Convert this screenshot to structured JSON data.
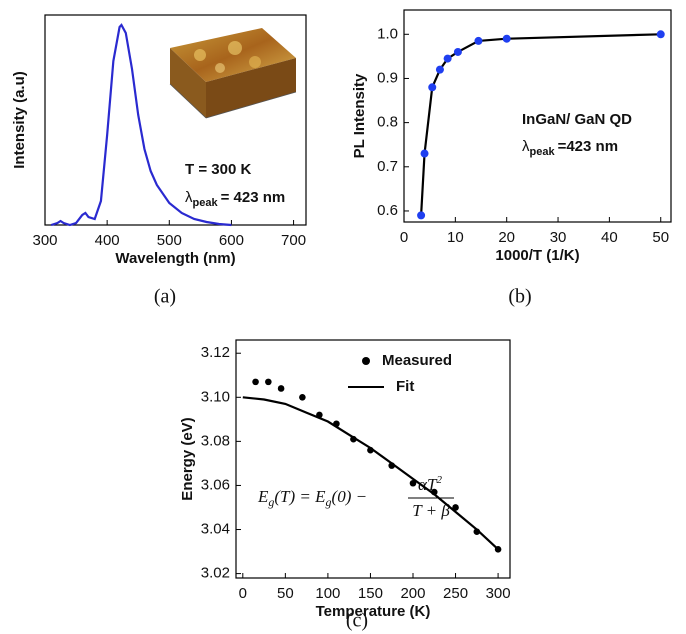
{
  "chart_data": [
    {
      "type": "line",
      "panel_label": "(a)",
      "x_label": "Wavelength (nm)",
      "y_label": "Intensity (a.u)",
      "xlim": [
        300,
        720
      ],
      "xticks": [
        300,
        400,
        500,
        600,
        700
      ],
      "ylim": [
        0,
        1.05
      ],
      "yticks": [],
      "annotations": [
        "T = 300 K"
      ],
      "peak_label": {
        "symbol": "λ",
        "subscript": "peak",
        "text": "= 423 nm"
      },
      "series": [
        {
          "mode": "line",
          "color": "#2a2ad0",
          "x": [
            310,
            320,
            325,
            330,
            340,
            350,
            360,
            365,
            370,
            380,
            390,
            400,
            410,
            420,
            423,
            430,
            440,
            450,
            460,
            470,
            480,
            500,
            520,
            540,
            560,
            580,
            600
          ],
          "values": [
            0,
            0.01,
            0.02,
            0.01,
            0,
            0.01,
            0.05,
            0.06,
            0.04,
            0.03,
            0.12,
            0.45,
            0.82,
            0.99,
            1.0,
            0.96,
            0.78,
            0.55,
            0.38,
            0.27,
            0.2,
            0.11,
            0.06,
            0.03,
            0.015,
            0.005,
            0
          ]
        }
      ]
    },
    {
      "type": "line",
      "panel_label": "(b)",
      "x_label": "1000/T (1/K)",
      "y_label": "PL Intensity",
      "xlim": [
        0,
        52
      ],
      "xticks": [
        0,
        10,
        20,
        30,
        40,
        50
      ],
      "ylim": [
        0.575,
        1.055
      ],
      "yticks": [
        0.6,
        0.7,
        0.8,
        0.9,
        {
          "value": 1,
          "label": "1.0"
        }
      ],
      "annotations": [
        "InGaN/ GaN QD"
      ],
      "peak_label": {
        "symbol": "λ",
        "subscript": "peak",
        "text": "=423 nm"
      },
      "series": [
        {
          "mode": "line+markers",
          "color": "#000000",
          "marker_color": "#1f3ff0",
          "x": [
            3.33,
            4,
            5.5,
            7,
            8.5,
            10.5,
            14.5,
            20,
            50
          ],
          "values": [
            0.59,
            0.73,
            0.88,
            0.92,
            0.945,
            0.96,
            0.985,
            0.99,
            1.0
          ]
        }
      ]
    },
    {
      "type": "scatter",
      "panel_label": "(c)",
      "x_label": "Temperature (K)",
      "y_label": "Energy (eV)",
      "xlim": [
        -8,
        314
      ],
      "xticks": [
        0,
        50,
        100,
        150,
        200,
        250,
        300
      ],
      "ylim": [
        3.018,
        3.126
      ],
      "yticks": [
        3.02,
        3.04,
        3.06,
        3.08,
        {
          "value": 3.1,
          "label": "3.10"
        },
        3.12
      ],
      "legend": "upper right",
      "equation": {
        "lhs": [
          "E",
          "g",
          "(T) = E",
          "g",
          "(0) −"
        ],
        "numerator": [
          "αT",
          "2"
        ],
        "denominator": "T + β"
      },
      "series": [
        {
          "name": "Measured",
          "mode": "markers",
          "color": "#000000",
          "x": [
            15,
            30,
            45,
            70,
            90,
            110,
            130,
            150,
            175,
            200,
            225,
            250,
            275,
            300
          ],
          "values": [
            3.107,
            3.107,
            3.104,
            3.1,
            3.092,
            3.088,
            3.081,
            3.076,
            3.069,
            3.061,
            3.057,
            3.05,
            3.039,
            3.031
          ]
        },
        {
          "name": "Fit",
          "mode": "line",
          "color": "#000000",
          "x": [
            0,
            25,
            50,
            75,
            100,
            125,
            150,
            175,
            200,
            225,
            250,
            275,
            300
          ],
          "values": [
            3.1,
            3.099,
            3.097,
            3.093,
            3.089,
            3.083,
            3.077,
            3.07,
            3.063,
            3.056,
            3.048,
            3.04,
            3.031
          ]
        }
      ]
    }
  ]
}
